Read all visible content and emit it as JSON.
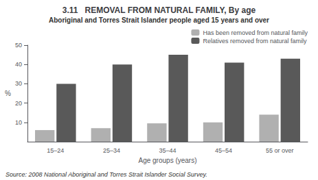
{
  "chart_data": {
    "type": "bar",
    "title": "3.11   REMOVAL FROM NATURAL FAMILY, By age",
    "subtitle": "Aboriginal and Torres Strait Islander people aged 15 years and over",
    "categories": [
      "15–24",
      "25–34",
      "35–44",
      "45–54",
      "55 or over"
    ],
    "series": [
      {
        "name": "Has been removed from natural family",
        "color": "#b0b0b0",
        "values": [
          6,
          7,
          9.5,
          10,
          14
        ]
      },
      {
        "name": "Relatives removed from natural family",
        "color": "#595959",
        "values": [
          30,
          40,
          45,
          41,
          43
        ]
      }
    ],
    "xlabel": "Age groups (years)",
    "ylabel": "%",
    "ylim": [
      0,
      50
    ],
    "yticks": [
      10,
      20,
      30,
      40,
      50
    ],
    "grid": false,
    "legend": "upper right",
    "annotations": [
      "Source: 2008 National Aboriginal and Torres Strait Islander Social Survey."
    ]
  }
}
